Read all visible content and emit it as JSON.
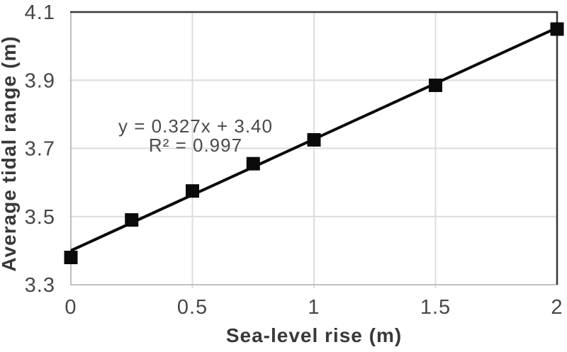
{
  "chart_data": {
    "type": "scatter",
    "title": "",
    "xlabel": "Sea-level rise (m)",
    "ylabel": "Average tidal range (m)",
    "x": [
      0,
      0.25,
      0.5,
      0.75,
      1,
      1.5,
      2
    ],
    "y": [
      3.38,
      3.49,
      3.575,
      3.655,
      3.725,
      3.885,
      4.05
    ],
    "xlim": [
      0,
      2
    ],
    "ylim": [
      3.3,
      4.1
    ],
    "xticks": [
      0,
      0.5,
      1,
      1.5,
      2
    ],
    "yticks": [
      3.3,
      3.5,
      3.7,
      3.9,
      4.1
    ],
    "grid": true,
    "legend": "none",
    "marker": {
      "shape": "square",
      "size": 19
    },
    "trendline": {
      "slope": 0.327,
      "intercept": 3.4,
      "x_start": 0,
      "x_end": 2,
      "equation_label": "y = 0.327x + 3.40",
      "r_squared_label": "R² = 0.997"
    },
    "colors": {
      "marker": "#0a0a0a",
      "trendline": "#0a0a0a",
      "grid": "#dcdcdc",
      "axis_line_light": "#c0c0c0",
      "plot_border_dark": "#373737",
      "tick_label": "#474747",
      "axis_title": "#383838",
      "annotation": "#4a4a4a",
      "background": "#ffffff"
    }
  }
}
